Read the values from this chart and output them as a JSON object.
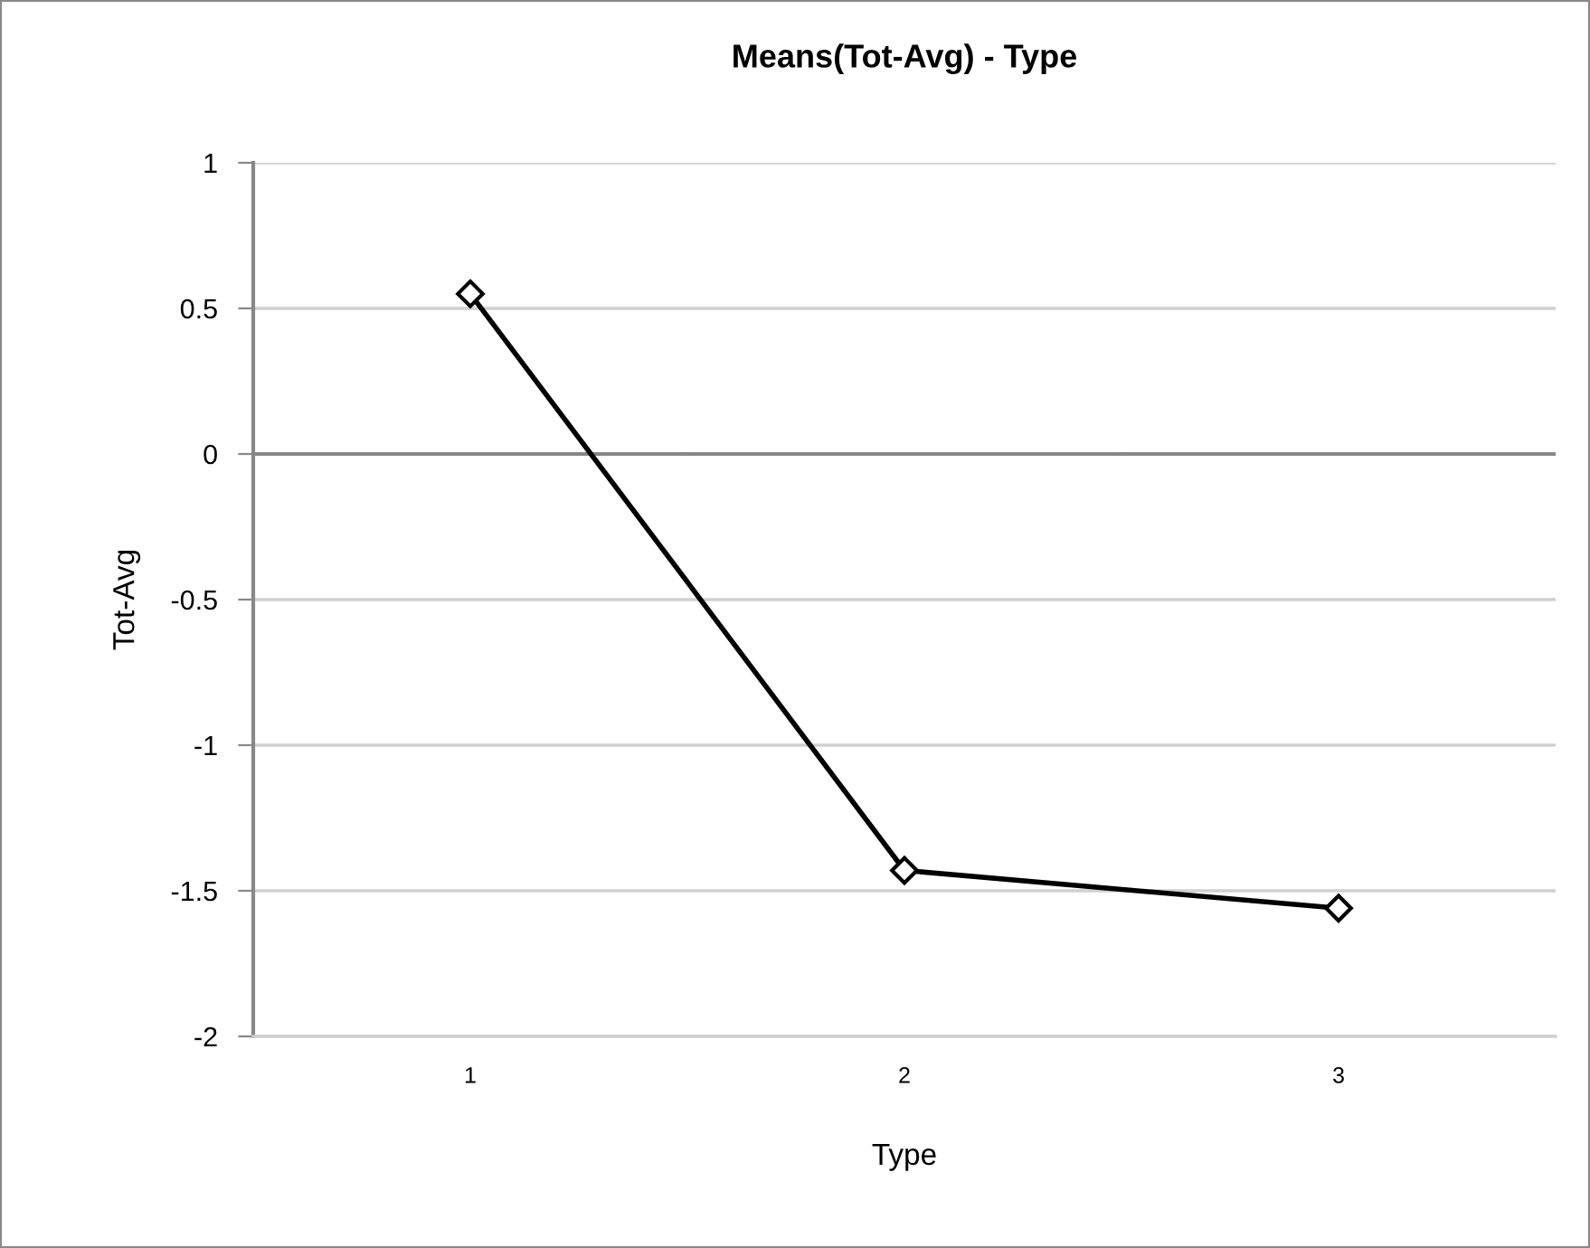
{
  "chart_data": {
    "type": "line",
    "title": "Means(Tot-Avg) - Type",
    "xlabel": "Type",
    "ylabel": "Tot-Avg",
    "categories": [
      "1",
      "2",
      "3"
    ],
    "series": [
      {
        "color": "#000000",
        "values": [
          0.55,
          -1.43,
          -1.56
        ]
      }
    ],
    "ylim": [
      -2,
      1
    ],
    "yticks": [
      -2,
      -1.5,
      -1,
      -0.5,
      0,
      0.5,
      1
    ],
    "grid": "y",
    "marker": "diamond",
    "line_style": "solid",
    "legend": false
  }
}
